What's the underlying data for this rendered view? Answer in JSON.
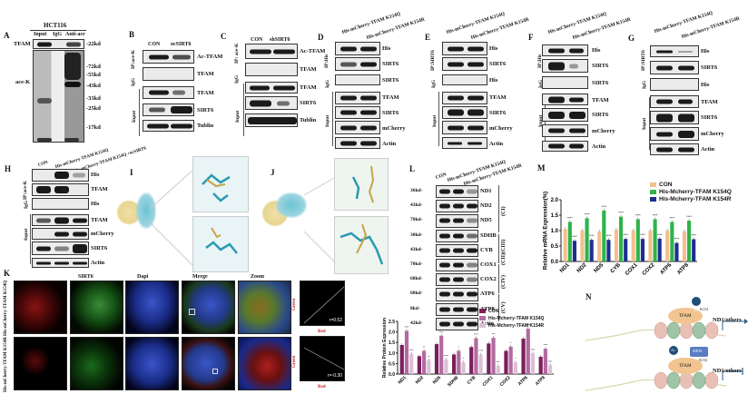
{
  "panels": {
    "A": {
      "label": "A",
      "cell_line": "HCT116",
      "lanes": [
        "Input",
        "IgG",
        "Anti-ace"
      ],
      "rows": [
        "TFAM",
        "ace-K"
      ],
      "markers": [
        "-22kd",
        "-72kd",
        "-55kd",
        "-43kd",
        "-33kd",
        "-25kd",
        "-17kd"
      ]
    },
    "B": {
      "label": "B",
      "lanes": [
        "CON",
        "ocSIRT6"
      ],
      "groups": [
        "IP:ace-K",
        "IgG",
        "Input"
      ],
      "rows": [
        "Ac-TFAM",
        "TFAM",
        "TFAM",
        "SIRT6",
        "Tublin"
      ]
    },
    "C": {
      "label": "C",
      "lanes": [
        "CON",
        "shSIRT6"
      ],
      "groups": [
        "IP: ace-K",
        "IgG",
        "Input"
      ],
      "rows": [
        "Ac-TFAM",
        "TFAM",
        "TFAM",
        "SIRT6",
        "Tublin"
      ]
    },
    "D": {
      "label": "D",
      "lanes": [
        "His-mCherry-TFAM K154Q",
        "His-mCherry-TFAM K154R"
      ],
      "groups": [
        "IP:His",
        "IgG",
        "Input"
      ],
      "rows": [
        "His",
        "SIRT6",
        "SIRT6",
        "TFAM",
        "SIRT6",
        "mCherry",
        "Actin"
      ]
    },
    "E": {
      "label": "E",
      "lanes": [
        "His-mCherry-TFAM K154Q",
        "His-mCherry-TFAM K154R"
      ],
      "groups": [
        "IP:SIRT6",
        "IgG",
        "Input"
      ],
      "rows": [
        "His",
        "SIRT6",
        "His",
        "TFAM",
        "SIRT6",
        "mCherry",
        "Actin"
      ]
    },
    "F": {
      "label": "F",
      "lanes": [
        "His-mCherry-TFAM K154Q",
        "His-mCherry-TFAM K154R"
      ],
      "groups": [
        "IP:His",
        "IgG",
        "Input"
      ],
      "rows": [
        "His",
        "SIRT6",
        "SIRT6",
        "TFAM",
        "SIRT6",
        "mCherry",
        "Actin"
      ]
    },
    "G": {
      "label": "G",
      "lanes": [
        "His-mCherry-TFAM K154Q",
        "His-mCherry-TFAM K154R"
      ],
      "groups": [
        "IP:SIRT6",
        "IgG",
        "Input"
      ],
      "rows": [
        "His",
        "SIRT6",
        "His",
        "TFAM",
        "SIRT6",
        "mCherry",
        "Actin"
      ]
    },
    "H": {
      "label": "H",
      "lanes": [
        "CON",
        "His-mCherry-TFAM K154Q",
        "His-mCherry-TFAM K154Q +ocSIRT6"
      ],
      "groups": [
        "IP:ace-K",
        "IgG",
        "Input"
      ],
      "rows": [
        "His",
        "TFAM",
        "His",
        "TFAM",
        "mCherry",
        "SIRT6",
        "Actin"
      ]
    },
    "I": {
      "label": "I"
    },
    "J": {
      "label": "J"
    },
    "K": {
      "label": "K",
      "columns": [
        "SIRT6",
        "Dapi",
        "Merge",
        "Zoom"
      ],
      "rows": [
        "His-mCherry-TFAM K154Q",
        "His-mCherry-TFAM K154R"
      ],
      "colocalization": [
        {
          "y_label": "Green",
          "x_label": "Red",
          "r": "r=0.52"
        },
        {
          "y_label": "Green",
          "x_label": "Red",
          "r": "r=-0.30"
        }
      ]
    },
    "L": {
      "label": "L",
      "lanes": [
        "CON",
        "His-mCherry-TFAM K154Q",
        "His-mCherry-TFAM K154R"
      ],
      "rows": [
        {
          "mw": "36kd-",
          "name": "ND1"
        },
        {
          "mw": "43kd-",
          "name": "ND2"
        },
        {
          "mw": "70kd-",
          "name": "ND5"
        },
        {
          "mw": "30kd-",
          "name": "SDHB"
        },
        {
          "mw": "43kd-",
          "name": "CYB"
        },
        {
          "mw": "70kd-",
          "name": "COX1"
        },
        {
          "mw": "68kd-",
          "name": "COX2"
        },
        {
          "mw": "68kd-",
          "name": "ATP6"
        },
        {
          "mw": "8kd-",
          "name": "ATP8"
        },
        {
          "mw": "42kd-",
          "name": "Actin"
        }
      ],
      "complexes": [
        "(CI)",
        "(CII)(CIII)",
        "(CIV)",
        "(CV)"
      ]
    },
    "M": {
      "label": "M"
    },
    "N": {
      "label": "N",
      "top": {
        "ac": "Ac",
        "site": "K154",
        "protein": "TFAM",
        "target": "ND1/others"
      },
      "bottom": {
        "ac": "Ac",
        "site": "K154",
        "enzyme": "SIRT6",
        "protein": "TFAM",
        "target": "ND1/others"
      }
    }
  },
  "chart_data": [
    {
      "type": "bar",
      "panel": "M",
      "title": "",
      "xlabel": "",
      "ylabel": "Relative mRNA Expression(%)",
      "ylim": [
        0,
        2.0
      ],
      "yticks": [
        "0.0",
        "0.5",
        "1.0",
        "1.5",
        "2.0"
      ],
      "categories": [
        "ND1",
        "ND2",
        "ND5",
        "CYB",
        "COX1",
        "COX2",
        "ATP6",
        "ATP8"
      ],
      "series": [
        {
          "name": "CON",
          "color": "#f2c08f",
          "values": [
            1.05,
            1.0,
            0.97,
            1.03,
            1.0,
            1.0,
            1.0,
            0.98
          ]
        },
        {
          "name": "His-Mcherry-TFAM K154Q",
          "color": "#2fb34a",
          "values": [
            1.28,
            1.4,
            1.65,
            1.45,
            1.37,
            1.37,
            1.28,
            1.32
          ]
        },
        {
          "name": "His-Mcherry-TFAM K154R",
          "color": "#1f2f8f",
          "values": [
            0.67,
            0.7,
            0.7,
            0.73,
            0.73,
            0.74,
            0.6,
            0.72
          ]
        }
      ],
      "significance": "****",
      "legend_position": "top-right",
      "grid": false
    },
    {
      "type": "bar",
      "panel": "L-quant",
      "title": "",
      "xlabel": "",
      "ylabel": "Relative Protein Expression",
      "ylim": [
        0,
        2.5
      ],
      "yticks": [
        "0.0",
        "0.5",
        "1.0",
        "1.5",
        "2.0",
        "2.5"
      ],
      "categories": [
        "ND1",
        "ND2",
        "ND5",
        "SDHB",
        "CYB",
        "COX1",
        "COX2",
        "ATP6",
        "ATP8"
      ],
      "series": [
        {
          "name": "CON",
          "color": "#7a1f5c",
          "values": [
            1.38,
            0.85,
            1.42,
            0.93,
            1.28,
            1.45,
            1.1,
            1.68,
            0.82
          ]
        },
        {
          "name": "His-Mcherry-TFAM K154Q",
          "color": "#b36aa0",
          "values": [
            2.05,
            1.1,
            1.82,
            1.1,
            1.7,
            1.72,
            1.3,
            2.15,
            1.2
          ]
        },
        {
          "name": "His-Mcherry-TFAM K154R",
          "color": "#dcc0d6",
          "values": [
            0.95,
            0.65,
            0.68,
            0.55,
            0.92,
            0.38,
            0.55,
            0.98,
            0.42
          ]
        }
      ],
      "significance_labels": [
        "****",
        "**",
        "****",
        "*",
        "****",
        "***",
        "*",
        "****",
        "****"
      ],
      "legend_position": "top-right",
      "grid": false
    }
  ]
}
